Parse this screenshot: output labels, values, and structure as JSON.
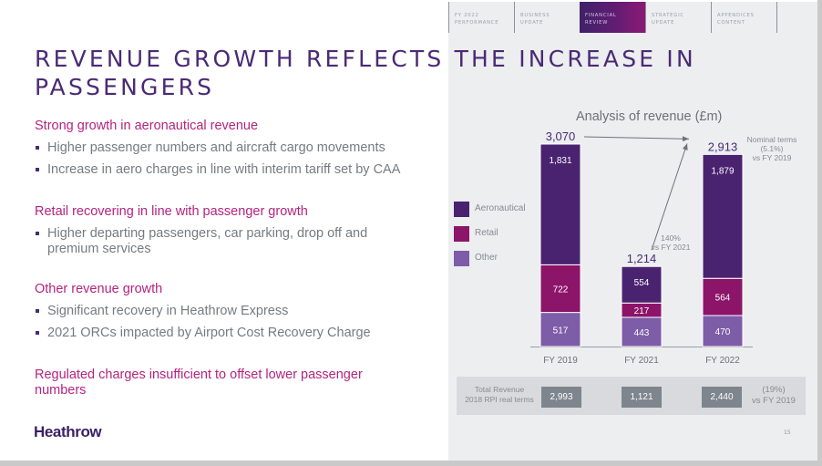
{
  "nav": {
    "items": [
      {
        "label": "FY 2022\nPERFORMANCE",
        "active": false
      },
      {
        "label": "BUSINESS\nUPDATE",
        "active": false
      },
      {
        "label": "FINANCIAL\nREVIEW",
        "active": true
      },
      {
        "label": "STRATEGIC\nUPDATE",
        "active": false
      },
      {
        "label": "APPENDICES\nCONTENT",
        "active": false
      }
    ]
  },
  "title": "REVENUE GROWTH REFLECTS THE INCREASE IN PASSENGERS",
  "sections": [
    {
      "heading": "Strong growth in aeronautical revenue",
      "bullets": [
        "Higher passenger numbers and aircraft cargo movements",
        "Increase in aero charges in line with interim tariff set by CAA"
      ]
    },
    {
      "heading": "Retail recovering in line with passenger growth",
      "bullets": [
        "Higher departing passengers, car parking, drop off and premium services"
      ]
    },
    {
      "heading": "Other revenue growth",
      "bullets": [
        "Significant recovery in Heathrow Express",
        "2021 ORCs impacted by Airport Cost Recovery Charge"
      ]
    },
    {
      "heading": "Regulated charges insufficient to offset lower passenger numbers",
      "bullets": []
    }
  ],
  "logo": "Heathrow",
  "page_number": "15",
  "colors": {
    "aeronautical": "#4a2370",
    "retail": "#8c1469",
    "other": "#7d5ca8",
    "accent_purple": "#4a2a75",
    "accent_magenta": "#b5237e"
  },
  "chart_data": {
    "type": "bar",
    "stacked": true,
    "title": "Analysis of revenue (£m)",
    "categories": [
      "FY 2019",
      "FY 2021",
      "FY 2022"
    ],
    "series": [
      {
        "name": "Other",
        "values": [
          517,
          443,
          470
        ]
      },
      {
        "name": "Retail",
        "values": [
          722,
          217,
          564
        ]
      },
      {
        "name": "Aeronautical",
        "values": [
          1831,
          554,
          1879
        ]
      }
    ],
    "totals": [
      "3,070",
      "1,214",
      "2,913"
    ],
    "legend": [
      "Aeronautical",
      "Retail",
      "Other"
    ],
    "legend_position": "left",
    "annotations": {
      "nominal": "Nominal terms\n(5.1%)\nvs FY 2019",
      "growth": "140%\nvs FY 2021"
    },
    "ylim": [
      0,
      3070
    ],
    "grid": false,
    "xlabel": "",
    "ylabel": ""
  },
  "summary": {
    "label": "Total Revenue\n2018 RPI real terms",
    "values": [
      "2,993",
      "1,121",
      "2,440"
    ],
    "note": "(19%)\nvs FY 2019"
  }
}
